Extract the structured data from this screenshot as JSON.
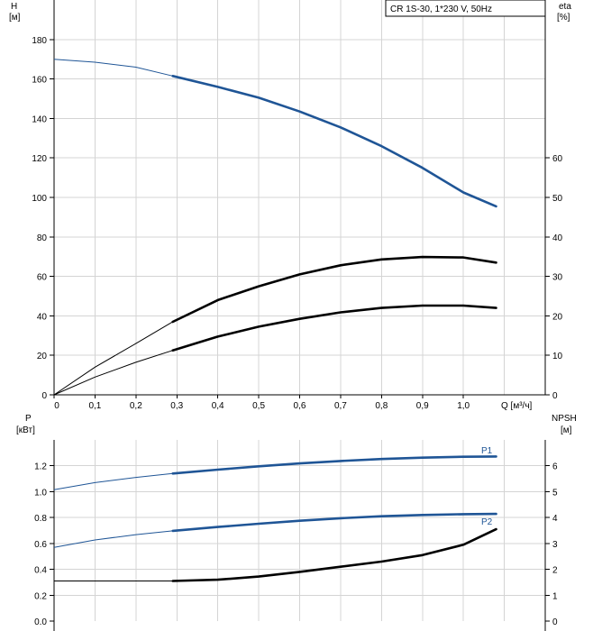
{
  "legend": "CR 1S-30, 1*230 V, 50Hz",
  "top_chart": {
    "left_axis_unit": "H",
    "left_axis_unit2": "[м]",
    "right_axis_unit": "eta",
    "right_axis_unit2": "[%]",
    "x_axis_unit": "Q [м³/ч]"
  },
  "bottom_chart": {
    "left_axis_unit": "P",
    "left_axis_unit2": "[кВт]",
    "right_axis_unit": "NPSH",
    "right_axis_unit2": "[м]",
    "p1_label": "P1",
    "p2_label": "P2"
  },
  "colors": {
    "blue": "#1f5596",
    "black": "#000000",
    "grid": "#d4d4d4"
  },
  "chart_data": [
    {
      "type": "line",
      "title": "CR 1S-30, 1*230 V, 50Hz",
      "xlabel": "Q [м³/ч]",
      "ylabel": "H [м]",
      "y2label": "eta [%]",
      "xlim": [
        0,
        1.2
      ],
      "ylim": [
        0,
        200
      ],
      "y2lim": [
        0,
        100
      ],
      "grid": true,
      "x_ticks": [
        "0",
        "0,1",
        "0,2",
        "0,3",
        "0,4",
        "0,5",
        "0,6",
        "0,7",
        "0,8",
        "0,9",
        "1,0"
      ],
      "y_ticks": [
        "0",
        "20",
        "40",
        "60",
        "80",
        "100",
        "120",
        "140",
        "160",
        "180"
      ],
      "y2_ticks": [
        "0",
        "10",
        "20",
        "30",
        "40",
        "50",
        "60"
      ],
      "series": [
        {
          "name": "H",
          "axis": "left",
          "color": "#1f5596",
          "op_start": 0.29,
          "x": [
            0,
            0.1,
            0.2,
            0.29,
            0.4,
            0.5,
            0.6,
            0.7,
            0.8,
            0.9,
            1.0,
            1.08
          ],
          "y": [
            170,
            168.5,
            166,
            161.5,
            156,
            150.5,
            143.5,
            135.5,
            126,
            115,
            102.5,
            95.5
          ]
        },
        {
          "name": "",
          "axis": "right",
          "color": "#000000",
          "op_start": 0.29,
          "x": [
            0,
            0.1,
            0.2,
            0.29,
            0.4,
            0.5,
            0.6,
            0.7,
            0.8,
            0.9,
            1.0,
            1.08
          ],
          "y": [
            0,
            7,
            13,
            18.5,
            24,
            27.5,
            30.5,
            32.8,
            34.3,
            34.9,
            34.8,
            33.5
          ]
        },
        {
          "name": "",
          "axis": "left",
          "color": "#000000",
          "op_start": 0.29,
          "x": [
            0,
            0.1,
            0.2,
            0.29,
            0.4,
            0.5,
            0.6,
            0.7,
            0.8,
            0.9,
            1.0,
            1.08
          ],
          "y": [
            0,
            9,
            16.5,
            22.5,
            29.5,
            34.5,
            38.5,
            41.8,
            44,
            45.2,
            45.2,
            44
          ]
        }
      ]
    },
    {
      "type": "line",
      "xlabel": "",
      "ylabel": "P [кВт]",
      "y2label": "NPSH [м]",
      "xlim": [
        0,
        1.2
      ],
      "ylim": [
        0,
        1.4
      ],
      "y2lim": [
        0,
        7
      ],
      "grid": true,
      "y_ticks": [
        "0.0",
        "0.2",
        "0.4",
        "0.6",
        "0.8",
        "1.0",
        "1.2"
      ],
      "y2_ticks": [
        "0",
        "1",
        "2",
        "3",
        "4",
        "5",
        "6"
      ],
      "series": [
        {
          "name": "P1",
          "axis": "left",
          "color": "#1f5596",
          "op_start": 0.29,
          "x": [
            0,
            0.1,
            0.2,
            0.29,
            0.4,
            0.5,
            0.6,
            0.7,
            0.8,
            0.9,
            1.0,
            1.08
          ],
          "y": [
            1.015,
            1.07,
            1.11,
            1.14,
            1.17,
            1.196,
            1.218,
            1.237,
            1.252,
            1.263,
            1.27,
            1.272
          ]
        },
        {
          "name": "P2",
          "axis": "left",
          "color": "#1f5596",
          "op_start": 0.29,
          "x": [
            0,
            0.1,
            0.2,
            0.29,
            0.4,
            0.5,
            0.6,
            0.7,
            0.8,
            0.9,
            1.0,
            1.08
          ],
          "y": [
            0.57,
            0.627,
            0.668,
            0.697,
            0.727,
            0.752,
            0.775,
            0.795,
            0.81,
            0.82,
            0.826,
            0.828
          ]
        },
        {
          "name": "",
          "axis": "right",
          "color": "#000000",
          "op_start": 0.29,
          "x": [
            0,
            0.1,
            0.2,
            0.29,
            0.4,
            0.5,
            0.6,
            0.7,
            0.8,
            0.9,
            1.0,
            1.08
          ],
          "y": [
            1.55,
            1.55,
            1.55,
            1.55,
            1.6,
            1.72,
            1.9,
            2.1,
            2.3,
            2.55,
            2.95,
            3.55
          ]
        }
      ]
    }
  ]
}
